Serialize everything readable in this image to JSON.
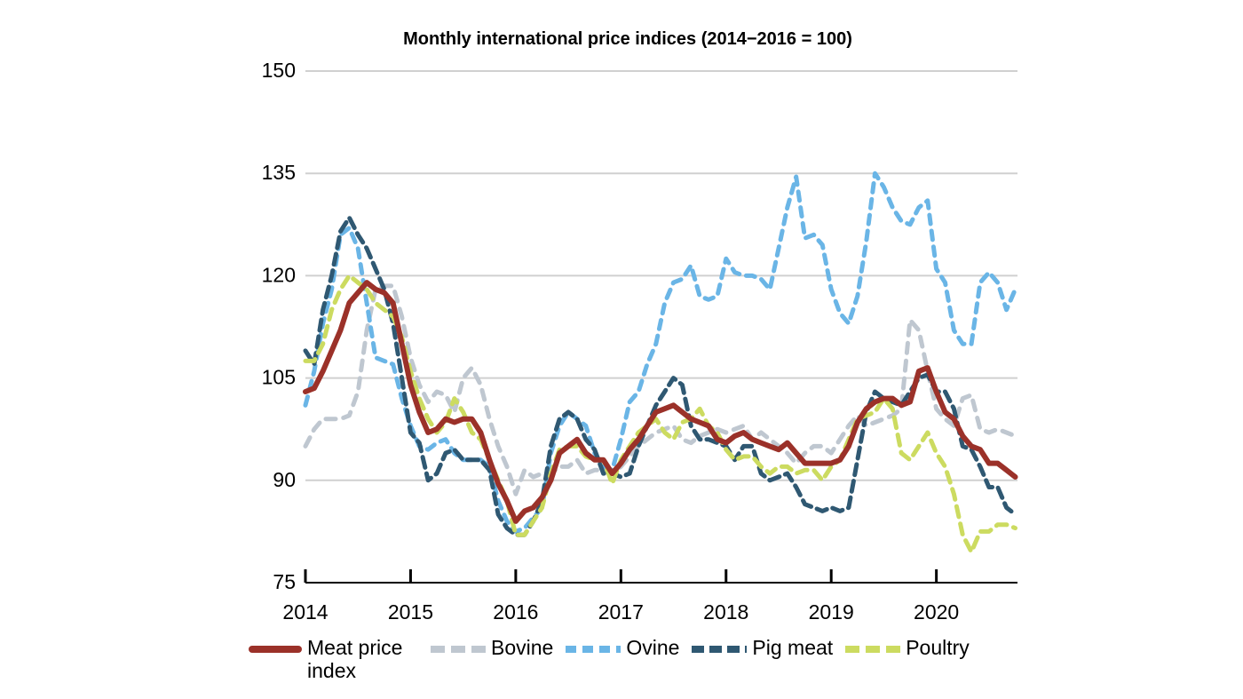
{
  "chart_data": {
    "type": "line",
    "title": "Monthly international price indices (2014−2016 = 100)",
    "xlabel": "",
    "ylabel": "",
    "ylim": [
      75,
      150
    ],
    "yticks": [
      "75",
      "90",
      "105",
      "120",
      "135",
      "150"
    ],
    "xticks": [
      "2014",
      "2015",
      "2016",
      "2017",
      "2018",
      "2019",
      "2020"
    ],
    "x_start": "2014-01",
    "x_end": "2020-10",
    "frequency": "monthly",
    "grid": "horizontal",
    "legend_position": "bottom",
    "series": [
      {
        "name": "Meat price index",
        "style": "solid",
        "color": "#9b3129",
        "values": [
          103,
          103.5,
          106,
          109,
          112,
          116,
          117.5,
          119,
          118,
          117.5,
          116,
          110,
          104,
          100,
          97,
          97.5,
          99,
          98.5,
          99,
          99,
          97,
          93,
          89.5,
          87,
          84,
          85.5,
          86,
          87.5,
          90,
          94,
          95,
          96,
          94,
          93,
          93,
          91,
          92.5,
          94.5,
          96,
          98,
          100,
          100.5,
          101,
          100,
          99,
          98.5,
          98,
          96,
          95.5,
          96.5,
          97,
          96,
          95.5,
          95,
          94.5,
          95.5,
          94,
          92.5,
          92.5,
          92.5,
          92.5,
          93,
          95,
          98.5,
          100.5,
          101.5,
          102,
          102,
          101,
          101.5,
          106,
          106.5,
          103,
          100,
          99,
          96.5,
          95,
          94.5,
          92.5,
          92.5,
          91.5,
          90.5
        ]
      },
      {
        "name": "Bovine",
        "style": "dashed",
        "color": "#bfc7d0",
        "values": [
          95,
          97.5,
          99,
          99,
          99,
          99.5,
          103,
          112,
          118,
          118.5,
          118.5,
          114,
          108,
          104,
          101.5,
          103,
          102.5,
          100,
          105,
          106.5,
          104,
          99,
          95,
          92,
          88,
          91.5,
          90.5,
          91,
          91,
          92,
          92,
          93,
          91,
          91.5,
          91.5,
          91,
          92,
          93.5,
          95,
          96,
          97,
          97.5,
          98,
          96,
          95.5,
          96.5,
          97,
          97.5,
          97,
          97.5,
          98,
          96,
          97,
          96,
          95,
          94,
          92.5,
          94,
          95,
          95,
          94,
          96,
          98,
          99.5,
          98,
          98.5,
          99,
          99.5,
          100.5,
          113.5,
          112,
          106,
          100.5,
          99,
          98,
          102,
          102.5,
          97.5,
          97,
          97.5,
          97,
          96.5
        ]
      },
      {
        "name": "Ovine",
        "style": "dashed",
        "color": "#6ab5e6",
        "values": [
          101,
          106,
          113,
          118,
          126,
          127,
          124,
          116,
          108,
          107.5,
          107,
          102,
          98,
          95,
          94.5,
          95.5,
          96,
          94,
          93,
          93,
          93,
          92,
          87,
          84,
          82.5,
          83,
          84.5,
          86,
          94,
          98,
          100,
          99,
          98,
          94,
          92,
          91.5,
          96,
          101.5,
          103,
          107,
          110,
          116,
          119,
          119.5,
          121.5,
          117,
          116.5,
          117,
          122.5,
          120.5,
          120,
          120,
          119.5,
          118,
          124,
          130,
          134.5,
          125.5,
          126,
          124.5,
          118,
          114.5,
          113,
          117,
          125,
          135,
          133,
          130,
          128,
          127.5,
          130,
          131,
          121,
          119,
          112,
          110,
          110,
          119,
          120.5,
          119,
          115,
          118
        ]
      },
      {
        "name": "Pig meat",
        "style": "dashed",
        "color": "#2f5872",
        "values": [
          109,
          107,
          115,
          120,
          126.5,
          128.5,
          126,
          124,
          121,
          118,
          113,
          105,
          97,
          95.5,
          90,
          91,
          94,
          94.5,
          93,
          93,
          93,
          91.5,
          85,
          83,
          82,
          82,
          84,
          87,
          95,
          99,
          100,
          99,
          96,
          94.5,
          91,
          91,
          90.5,
          91,
          95,
          98,
          101,
          103,
          105,
          104,
          98,
          96,
          96,
          95.5,
          95,
          93,
          95,
          95,
          91,
          90,
          90.5,
          91,
          89,
          86.5,
          86,
          85.5,
          86,
          85.5,
          86,
          93,
          100,
          103,
          102,
          101.5,
          101,
          103,
          105,
          105.5,
          103,
          103,
          100.5,
          95,
          94.5,
          92,
          89,
          89,
          86,
          85
        ]
      },
      {
        "name": "Poultry",
        "style": "dashed",
        "color": "#ccdb60",
        "values": [
          107.5,
          107.5,
          110,
          115,
          118,
          120,
          119,
          118,
          116,
          115,
          114,
          111,
          106,
          102,
          99,
          97,
          98.5,
          102,
          100,
          97,
          96,
          93,
          90,
          87,
          82,
          82,
          84,
          86,
          91,
          94.5,
          95,
          95,
          93.5,
          93,
          93,
          89.5,
          93,
          95,
          97,
          98,
          99,
          97,
          96,
          98.5,
          99,
          100.5,
          98,
          97,
          94.5,
          93,
          93.5,
          93.5,
          92,
          91,
          92,
          92,
          91,
          91.5,
          91.5,
          90,
          92,
          93,
          96,
          99,
          99.5,
          100,
          102,
          100.5,
          94,
          93,
          95,
          97,
          94,
          92,
          88,
          82,
          79.5,
          82.5,
          82.5,
          83.5,
          83.5,
          83
        ]
      }
    ],
    "legend": [
      "Meat price\nindex",
      "Bovine",
      "Ovine",
      "Pig meat",
      "Poultry"
    ]
  }
}
